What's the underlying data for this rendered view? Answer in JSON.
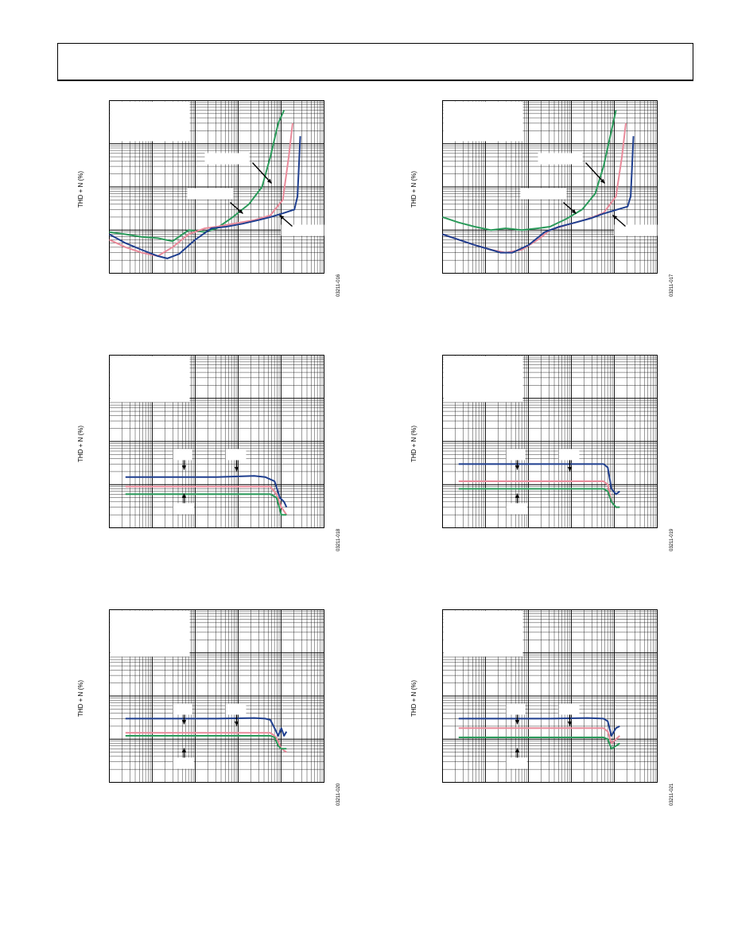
{
  "page": {
    "header_title": ""
  },
  "colors": {
    "series_a": "#1f3f8f",
    "series_b": "#e98a9a",
    "series_c": "#2a9a5a",
    "grid": "#000000"
  },
  "panels": [
    {
      "id": "p1",
      "ylabel": "THD + N (%)",
      "figure_id": "03211-016"
    },
    {
      "id": "p2",
      "ylabel": "THD + N (%)",
      "figure_id": "03211-017"
    },
    {
      "id": "p3",
      "ylabel": "THD + N (%)",
      "figure_id": "03211-018"
    },
    {
      "id": "p4",
      "ylabel": "THD + N (%)",
      "figure_id": "03211-019"
    },
    {
      "id": "p5",
      "ylabel": "THD + N (%)",
      "figure_id": "03211-020"
    },
    {
      "id": "p6",
      "ylabel": "THD + N (%)",
      "figure_id": "03211-021"
    }
  ],
  "chart_data": [
    {
      "type": "line",
      "log_x": true,
      "log_y": true,
      "grid": true,
      "xlim": [
        0.001,
        10
      ],
      "ylim": [
        0.001,
        10
      ],
      "series": [
        {
          "color_key": "series_c",
          "x": [
            0.001,
            0.002,
            0.004,
            0.008,
            0.015,
            0.03,
            0.06,
            0.1,
            0.2,
            0.4,
            0.7,
            1.0,
            1.4,
            1.8
          ],
          "y": [
            0.009,
            0.008,
            0.007,
            0.0065,
            0.0055,
            0.01,
            0.009,
            0.011,
            0.02,
            0.04,
            0.1,
            0.5,
            3,
            6
          ]
        },
        {
          "color_key": "series_b",
          "x": [
            0.001,
            0.002,
            0.004,
            0.008,
            0.015,
            0.03,
            0.06,
            0.1,
            0.2,
            0.5,
            1.0,
            1.7,
            2.2,
            2.6
          ],
          "y": [
            0.006,
            0.004,
            0.003,
            0.0025,
            0.004,
            0.008,
            0.011,
            0.012,
            0.014,
            0.017,
            0.022,
            0.05,
            0.5,
            3
          ]
        },
        {
          "color_key": "series_a",
          "x": [
            0.001,
            0.002,
            0.004,
            0.008,
            0.012,
            0.02,
            0.04,
            0.08,
            0.15,
            0.3,
            0.6,
            1.0,
            1.8,
            2.8,
            3.2,
            3.6
          ],
          "y": [
            0.008,
            0.005,
            0.0035,
            0.0025,
            0.0022,
            0.0028,
            0.006,
            0.011,
            0.012,
            0.014,
            0.017,
            0.02,
            0.025,
            0.03,
            0.06,
            1.5
          ]
        }
      ]
    },
    {
      "type": "line",
      "log_x": true,
      "log_y": true,
      "grid": true,
      "xlim": [
        0.001,
        10
      ],
      "ylim": [
        0.001,
        10
      ],
      "series": [
        {
          "color_key": "series_c",
          "x": [
            0.001,
            0.002,
            0.004,
            0.008,
            0.015,
            0.03,
            0.06,
            0.1,
            0.2,
            0.4,
            0.7,
            1.0,
            1.4,
            1.7
          ],
          "y": [
            0.02,
            0.015,
            0.012,
            0.01,
            0.011,
            0.01,
            0.011,
            0.012,
            0.018,
            0.03,
            0.07,
            0.3,
            2,
            6
          ]
        },
        {
          "color_key": "series_b",
          "x": [
            0.001,
            0.002,
            0.004,
            0.008,
            0.015,
            0.03,
            0.06,
            0.1,
            0.2,
            0.5,
            1.0,
            1.7,
            2.2,
            2.6
          ],
          "y": [
            0.008,
            0.006,
            0.0045,
            0.0035,
            0.003,
            0.0035,
            0.006,
            0.01,
            0.013,
            0.018,
            0.025,
            0.06,
            0.5,
            3
          ]
        },
        {
          "color_key": "series_a",
          "x": [
            0.001,
            0.002,
            0.004,
            0.008,
            0.012,
            0.02,
            0.04,
            0.08,
            0.15,
            0.3,
            0.6,
            1.0,
            1.8,
            2.8,
            3.2,
            3.6
          ],
          "y": [
            0.008,
            0.006,
            0.0045,
            0.0035,
            0.003,
            0.003,
            0.0045,
            0.009,
            0.012,
            0.015,
            0.019,
            0.024,
            0.03,
            0.035,
            0.06,
            1.5
          ]
        }
      ]
    },
    {
      "type": "line",
      "log_x": true,
      "log_y": false,
      "grid": true,
      "xlim": [
        10,
        100000
      ],
      "ylim": [
        0.001,
        10
      ],
      "series": [
        {
          "color_key": "series_a",
          "x": [
            20,
            100,
            1000,
            5000,
            8000,
            12000,
            15000,
            18000,
            20000
          ],
          "y": [
            0.015,
            0.015,
            0.015,
            0.016,
            0.015,
            0.012,
            0.005,
            0.004,
            0.003
          ]
        },
        {
          "color_key": "series_b",
          "x": [
            20,
            100,
            1000,
            5000,
            10000,
            13000,
            16000,
            20000
          ],
          "y": [
            0.009,
            0.009,
            0.009,
            0.009,
            0.009,
            0.006,
            0.003,
            0.002
          ]
        },
        {
          "color_key": "series_c",
          "x": [
            20,
            100,
            1000,
            5000,
            10000,
            13000,
            16000,
            20000
          ],
          "y": [
            0.006,
            0.006,
            0.006,
            0.006,
            0.006,
            0.005,
            0.002,
            0.002
          ]
        }
      ]
    },
    {
      "type": "line",
      "log_x": true,
      "log_y": false,
      "grid": true,
      "xlim": [
        10,
        100000
      ],
      "ylim": [
        0.001,
        10
      ],
      "series": [
        {
          "color_key": "series_a",
          "x": [
            20,
            100,
            1000,
            5000,
            10000,
            12000,
            14000,
            17000,
            20000
          ],
          "y": [
            0.03,
            0.03,
            0.03,
            0.03,
            0.03,
            0.025,
            0.008,
            0.006,
            0.007
          ]
        },
        {
          "color_key": "series_b",
          "x": [
            20,
            100,
            1000,
            5000,
            10000,
            12000,
            14000,
            17000,
            20000
          ],
          "y": [
            0.012,
            0.012,
            0.012,
            0.012,
            0.012,
            0.01,
            0.004,
            0.003,
            0.003
          ]
        },
        {
          "color_key": "series_c",
          "x": [
            20,
            100,
            1000,
            5000,
            10000,
            12000,
            14000,
            17000,
            20000
          ],
          "y": [
            0.008,
            0.008,
            0.008,
            0.008,
            0.008,
            0.007,
            0.004,
            0.003,
            0.003
          ]
        }
      ]
    },
    {
      "type": "line",
      "log_x": true,
      "log_y": false,
      "grid": true,
      "xlim": [
        10,
        100000
      ],
      "ylim": [
        0.001,
        10
      ],
      "series": [
        {
          "color_key": "series_a",
          "x": [
            20,
            100,
            1000,
            5000,
            8000,
            10000,
            12000,
            14000,
            16000,
            18000,
            20000
          ],
          "y": [
            0.03,
            0.03,
            0.03,
            0.031,
            0.03,
            0.028,
            0.018,
            0.012,
            0.018,
            0.012,
            0.015
          ]
        },
        {
          "color_key": "series_b",
          "x": [
            20,
            100,
            1000,
            5000,
            10000,
            12000,
            14000,
            16000,
            20000
          ],
          "y": [
            0.014,
            0.014,
            0.014,
            0.014,
            0.014,
            0.012,
            0.009,
            0.006,
            0.005
          ]
        },
        {
          "color_key": "series_c",
          "x": [
            20,
            100,
            1000,
            5000,
            10000,
            12000,
            14000,
            16000,
            20000
          ],
          "y": [
            0.012,
            0.012,
            0.012,
            0.012,
            0.012,
            0.011,
            0.007,
            0.006,
            0.006
          ]
        }
      ]
    },
    {
      "type": "line",
      "log_x": true,
      "log_y": false,
      "grid": true,
      "xlim": [
        10,
        100000
      ],
      "ylim": [
        0.001,
        10
      ],
      "series": [
        {
          "color_key": "series_a",
          "x": [
            20,
            100,
            1000,
            5000,
            10000,
            12000,
            14000,
            17000,
            20000
          ],
          "y": [
            0.03,
            0.03,
            0.03,
            0.031,
            0.03,
            0.026,
            0.012,
            0.018,
            0.02
          ]
        },
        {
          "color_key": "series_b",
          "x": [
            20,
            100,
            1000,
            5000,
            10000,
            12000,
            14000,
            17000,
            20000
          ],
          "y": [
            0.018,
            0.018,
            0.018,
            0.018,
            0.018,
            0.015,
            0.008,
            0.01,
            0.012
          ]
        },
        {
          "color_key": "series_c",
          "x": [
            20,
            100,
            1000,
            5000,
            10000,
            12000,
            14000,
            17000,
            20000
          ],
          "y": [
            0.011,
            0.011,
            0.011,
            0.011,
            0.011,
            0.01,
            0.006,
            0.007,
            0.008
          ]
        }
      ]
    }
  ]
}
